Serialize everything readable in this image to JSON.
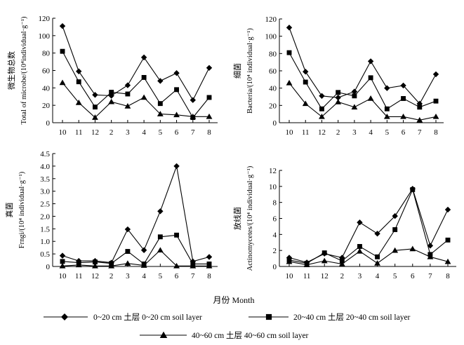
{
  "chart_data": [
    {
      "type": "line",
      "ylabel_cn": "微生物总数",
      "ylabel_en": "Total of microbe/(10⁴individual·g⁻¹)",
      "ylim": [
        0,
        120
      ],
      "yticks": [
        "0",
        "20",
        "40",
        "60",
        "80",
        "100",
        "120"
      ],
      "categories": [
        "10",
        "11",
        "12",
        "2",
        "3",
        "4",
        "5",
        "6",
        "7",
        "8"
      ],
      "series": [
        {
          "name": "0~20 cm",
          "marker": "diamond",
          "values": [
            111,
            59,
            32,
            31,
            43,
            75,
            48,
            57,
            26,
            63
          ]
        },
        {
          "name": "20~40 cm",
          "marker": "square",
          "values": [
            82,
            47,
            18,
            35,
            33,
            52,
            22,
            38,
            6,
            29
          ]
        },
        {
          "name": "40~60 cm",
          "marker": "triangle",
          "values": [
            46,
            23,
            6,
            24,
            19,
            29,
            10,
            9,
            7,
            7
          ]
        }
      ]
    },
    {
      "type": "line",
      "ylabel_cn": "细菌",
      "ylabel_en": "Bacteria/(10⁴ individual·g⁻¹)",
      "ylim": [
        0,
        120
      ],
      "yticks": [
        "0",
        "20",
        "40",
        "60",
        "80",
        "100",
        "120"
      ],
      "categories": [
        "10",
        "11",
        "12",
        "2",
        "3",
        "4",
        "5",
        "6",
        "7",
        "8"
      ],
      "series": [
        {
          "name": "0~20 cm",
          "marker": "diamond",
          "values": [
            110,
            59,
            31,
            29,
            36,
            71,
            40,
            43,
            22,
            56
          ]
        },
        {
          "name": "20~40 cm",
          "marker": "square",
          "values": [
            81,
            47,
            16,
            35,
            31,
            52,
            16,
            28,
            18,
            25
          ]
        },
        {
          "name": "40~60 cm",
          "marker": "triangle",
          "values": [
            46,
            22,
            7,
            24,
            18,
            28,
            7,
            7,
            3,
            7
          ]
        }
      ]
    },
    {
      "type": "line",
      "ylabel_cn": "真菌",
      "ylabel_en": "Frngi/(10⁴ individual·g⁻¹)",
      "ylim": [
        0,
        4.5
      ],
      "yticks": [
        "0",
        "0.5",
        "1.0",
        "1.5",
        "2.0",
        "2.5",
        "3.0",
        "3.5",
        "4.0",
        "4.5"
      ],
      "categories": [
        "10",
        "11",
        "12",
        "2",
        "3",
        "4",
        "5",
        "6",
        "7",
        "8"
      ],
      "series": [
        {
          "name": "0~20 cm",
          "marker": "diamond",
          "values": [
            0.43,
            0.22,
            0.22,
            0.15,
            1.48,
            0.65,
            2.2,
            4.0,
            0.2,
            0.38
          ]
        },
        {
          "name": "20~40 cm",
          "marker": "square",
          "values": [
            0.2,
            0.15,
            0.18,
            0.12,
            0.6,
            0.1,
            1.18,
            1.25,
            0.1,
            0.1
          ]
        },
        {
          "name": "40~60 cm",
          "marker": "triangle",
          "values": [
            0.02,
            0.06,
            0.02,
            0.02,
            0.12,
            0.04,
            0.65,
            0.02,
            0.02,
            0.02
          ]
        }
      ]
    },
    {
      "type": "line",
      "ylabel_cn": "放线菌",
      "ylabel_en": "Actinomycetes/(10⁴ individual·g⁻¹)",
      "ylim": [
        0,
        12
      ],
      "yticks": [
        "0",
        "2",
        "4",
        "6",
        "8",
        "10",
        "12"
      ],
      "categories": [
        "10",
        "11",
        "12",
        "2",
        "3",
        "4",
        "5",
        "6",
        "7",
        "8"
      ],
      "series": [
        {
          "name": "0~20 cm",
          "marker": "diamond",
          "values": [
            1.1,
            0.5,
            1.6,
            1.1,
            5.5,
            4.1,
            6.3,
            9.7,
            2.6,
            7.1
          ]
        },
        {
          "name": "20~40 cm",
          "marker": "square",
          "values": [
            0.8,
            0.4,
            1.7,
            0.7,
            2.5,
            1.2,
            4.6,
            9.6,
            1.5,
            3.3
          ]
        },
        {
          "name": "40~60 cm",
          "marker": "triangle",
          "values": [
            0.6,
            0.2,
            0.7,
            0.3,
            1.9,
            0.4,
            2.0,
            2.2,
            1.2,
            0.6
          ]
        }
      ]
    }
  ],
  "xlabel": "月份 Month",
  "legend": [
    {
      "marker": "diamond",
      "label": "0~20 cm 土层  0~20 cm  soil layer"
    },
    {
      "marker": "square",
      "label": "20~40 cm 土层  20~40 cm  soil layer"
    },
    {
      "marker": "triangle",
      "label": "40~60 cm 土层  40~60 cm  soil layer"
    }
  ]
}
